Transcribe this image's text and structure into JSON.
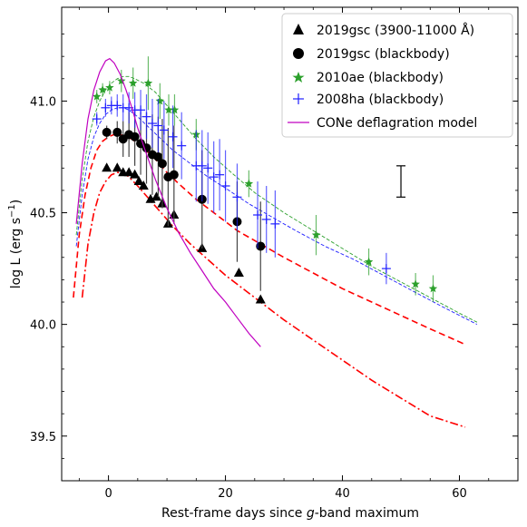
{
  "chart_data": {
    "type": "scatter",
    "title": "",
    "xlabel_main": "Rest-frame days since ",
    "xlabel_italic": "g",
    "xlabel_tail": "-band maximum",
    "ylabel_main": "log L (erg s",
    "ylabel_sup": "−1",
    "ylabel_tail": ")",
    "xlim": [
      -8,
      70
    ],
    "ylim": [
      39.3,
      41.42
    ],
    "xticks": [
      0,
      20,
      40,
      60
    ],
    "yticks": [
      39.5,
      40.0,
      40.5,
      41.0
    ],
    "ytick_labels": [
      "39.5",
      "40.0",
      "40.5",
      "41.0"
    ],
    "legend_position": "upper-right",
    "colors": {
      "black": "#000000",
      "green": "#2ca02c",
      "blue": "#1f1fff",
      "purple": "#c000c0",
      "red": "#ff0000",
      "scale_bar": "#000000"
    },
    "series": [
      {
        "name": "2019gsc (3900-11000 Å)",
        "marker": "triangle",
        "color": "#000000",
        "points": [
          [
            -0.3,
            40.7,
            0
          ],
          [
            1.5,
            40.7,
            0
          ],
          [
            2.5,
            40.68,
            0
          ],
          [
            3.5,
            40.68,
            0
          ],
          [
            4.5,
            40.67,
            0
          ],
          [
            5.2,
            40.64,
            0
          ],
          [
            6.0,
            40.62,
            0
          ],
          [
            7.2,
            40.56,
            0
          ],
          [
            8.2,
            40.57,
            0
          ],
          [
            9.2,
            40.54,
            0
          ],
          [
            10.2,
            40.45,
            0
          ],
          [
            11.2,
            40.49,
            0
          ],
          [
            16.0,
            40.34,
            0
          ],
          [
            22.3,
            40.23,
            0
          ],
          [
            26.0,
            40.11,
            0
          ]
        ]
      },
      {
        "name": "2019gsc (blackbody)",
        "marker": "circle",
        "color": "#000000",
        "points": [
          [
            -0.3,
            40.86,
            0.03
          ],
          [
            1.5,
            40.86,
            0.05
          ],
          [
            2.5,
            40.83,
            0.08
          ],
          [
            3.5,
            40.85,
            0.1
          ],
          [
            4.5,
            40.84,
            0.13
          ],
          [
            5.5,
            40.81,
            0.14
          ],
          [
            6.5,
            40.79,
            0.16
          ],
          [
            7.5,
            40.76,
            0.18
          ],
          [
            8.5,
            40.75,
            0.18
          ],
          [
            9.2,
            40.72,
            0.2
          ],
          [
            10.2,
            40.66,
            0.22
          ],
          [
            11.2,
            40.67,
            0.22
          ],
          [
            16.0,
            40.56,
            0.22
          ],
          [
            22.0,
            40.46,
            0.18
          ],
          [
            26.0,
            40.35,
            0.2
          ]
        ]
      },
      {
        "name": "2010ae (blackbody)",
        "marker": "star",
        "color": "#2ca02c",
        "points": [
          [
            -2.0,
            41.02,
            0.03
          ],
          [
            -1.0,
            41.05,
            0.03
          ],
          [
            0.2,
            41.06,
            0.03
          ],
          [
            2.2,
            41.09,
            0.05
          ],
          [
            4.2,
            41.08,
            0.07
          ],
          [
            6.8,
            41.08,
            0.12
          ],
          [
            8.8,
            41.0,
            0.08
          ],
          [
            10.3,
            40.96,
            0.07
          ],
          [
            11.3,
            40.96,
            0.07
          ],
          [
            15.0,
            40.85,
            0.07
          ],
          [
            24.0,
            40.63,
            0.06
          ],
          [
            35.5,
            40.4,
            0.09
          ],
          [
            44.5,
            40.28,
            0.06
          ],
          [
            52.5,
            40.18,
            0.05
          ],
          [
            55.5,
            40.16,
            0.06
          ]
        ]
      },
      {
        "name": "2008ha (blackbody)",
        "marker": "plus",
        "color": "#1f1fff",
        "points": [
          [
            -2.0,
            40.92,
            0.03
          ],
          [
            -0.5,
            40.97,
            0.04
          ],
          [
            0.5,
            40.98,
            0.04
          ],
          [
            1.5,
            40.98,
            0.05
          ],
          [
            2.5,
            40.97,
            0.06
          ],
          [
            3.5,
            40.97,
            0.07
          ],
          [
            4.5,
            40.96,
            0.08
          ],
          [
            5.5,
            40.96,
            0.09
          ],
          [
            6.5,
            40.93,
            0.1
          ],
          [
            7.5,
            40.9,
            0.11
          ],
          [
            8.5,
            40.89,
            0.12
          ],
          [
            9.5,
            40.87,
            0.13
          ],
          [
            11.0,
            40.84,
            0.14
          ],
          [
            12.5,
            40.8,
            0.15
          ],
          [
            15.0,
            40.71,
            0.16
          ],
          [
            16.0,
            40.71,
            0.16
          ],
          [
            17.0,
            40.7,
            0.16
          ],
          [
            18.0,
            40.66,
            0.16
          ],
          [
            19.0,
            40.67,
            0.16
          ],
          [
            20.0,
            40.62,
            0.16
          ],
          [
            22.0,
            40.57,
            0.15
          ],
          [
            25.5,
            40.49,
            0.15
          ],
          [
            27.0,
            40.47,
            0.15
          ],
          [
            28.5,
            40.45,
            0.15
          ],
          [
            47.5,
            40.25,
            0.07
          ]
        ]
      },
      {
        "name": "CONe deflagration model",
        "marker": "line",
        "color": "#c000c0",
        "points": [
          [
            -5.5,
            40.45,
            0
          ],
          [
            -4.5,
            40.72,
            0
          ],
          [
            -3.5,
            40.92,
            0
          ],
          [
            -2.5,
            41.05,
            0
          ],
          [
            -1.5,
            41.13,
            0
          ],
          [
            -0.5,
            41.18,
            0
          ],
          [
            0.2,
            41.19,
            0
          ],
          [
            1.0,
            41.17,
            0
          ],
          [
            2.0,
            41.12,
            0
          ],
          [
            3.0,
            41.05,
            0
          ],
          [
            4.0,
            40.97,
            0
          ],
          [
            5.0,
            40.88,
            0
          ],
          [
            6.0,
            40.8,
            0
          ],
          [
            8.0,
            40.65,
            0
          ],
          [
            10.0,
            40.52,
            0
          ],
          [
            12.0,
            40.41,
            0
          ],
          [
            14.0,
            40.32,
            0
          ],
          [
            16.0,
            40.24,
            0
          ],
          [
            18.0,
            40.16,
            0
          ],
          [
            20.0,
            40.1,
            0
          ],
          [
            22.0,
            40.03,
            0
          ],
          [
            24.0,
            39.96,
            0
          ],
          [
            26.0,
            39.9,
            0
          ]
        ]
      }
    ],
    "model_curves": [
      {
        "style": "dashed",
        "color": "#2ca02c",
        "points": [
          [
            -5.5,
            40.4
          ],
          [
            -4.5,
            40.65
          ],
          [
            -3.5,
            40.82
          ],
          [
            -2.5,
            40.93
          ],
          [
            -1.5,
            41.0
          ],
          [
            -0.5,
            41.05
          ],
          [
            0.5,
            41.08
          ],
          [
            1.5,
            41.1
          ],
          [
            2.5,
            41.11
          ],
          [
            3.5,
            41.11
          ],
          [
            4.5,
            41.1
          ],
          [
            6.0,
            41.08
          ],
          [
            8.0,
            41.04
          ],
          [
            10.0,
            40.98
          ],
          [
            12.0,
            40.92
          ],
          [
            15.0,
            40.83
          ],
          [
            18.0,
            40.75
          ],
          [
            21.0,
            40.68
          ],
          [
            25.0,
            40.59
          ],
          [
            30.0,
            40.5
          ],
          [
            35.0,
            40.42
          ],
          [
            40.0,
            40.34
          ],
          [
            45.0,
            40.26
          ],
          [
            50.0,
            40.19
          ],
          [
            55.0,
            40.12
          ],
          [
            60.0,
            40.05
          ],
          [
            63.0,
            40.01
          ]
        ]
      },
      {
        "style": "dashed",
        "color": "#1f1fff",
        "points": [
          [
            -5.5,
            40.35
          ],
          [
            -4.5,
            40.58
          ],
          [
            -3.5,
            40.74
          ],
          [
            -2.5,
            40.84
          ],
          [
            -1.5,
            40.9
          ],
          [
            -0.5,
            40.94
          ],
          [
            0.5,
            40.96
          ],
          [
            1.5,
            40.97
          ],
          [
            2.5,
            40.97
          ],
          [
            3.5,
            40.96
          ],
          [
            5.0,
            40.93
          ],
          [
            7.0,
            40.88
          ],
          [
            9.0,
            40.83
          ],
          [
            11.0,
            40.78
          ],
          [
            14.0,
            40.72
          ],
          [
            17.0,
            40.66
          ],
          [
            20.0,
            40.61
          ],
          [
            24.0,
            40.54
          ],
          [
            28.0,
            40.48
          ],
          [
            32.0,
            40.42
          ],
          [
            37.0,
            40.35
          ],
          [
            42.0,
            40.29
          ],
          [
            47.0,
            40.22
          ],
          [
            52.0,
            40.15
          ],
          [
            57.0,
            40.08
          ],
          [
            63.0,
            40.0
          ]
        ]
      },
      {
        "style": "dashed-thick",
        "color": "#ff0000",
        "points": [
          [
            -6.0,
            40.12
          ],
          [
            -5.0,
            40.4
          ],
          [
            -4.0,
            40.58
          ],
          [
            -3.0,
            40.7
          ],
          [
            -2.0,
            40.78
          ],
          [
            -1.0,
            40.82
          ],
          [
            0.0,
            40.84
          ],
          [
            1.0,
            40.85
          ],
          [
            2.0,
            40.85
          ],
          [
            3.0,
            40.84
          ],
          [
            4.0,
            40.83
          ],
          [
            5.0,
            40.81
          ],
          [
            6.0,
            40.79
          ],
          [
            8.0,
            40.74
          ],
          [
            10.0,
            40.68
          ],
          [
            12.0,
            40.63
          ],
          [
            15.0,
            40.56
          ],
          [
            18.0,
            40.5
          ],
          [
            22.0,
            40.42
          ],
          [
            26.0,
            40.36
          ],
          [
            30.0,
            40.3
          ],
          [
            35.0,
            40.23
          ],
          [
            40.0,
            40.16
          ],
          [
            45.0,
            40.1
          ],
          [
            50.0,
            40.04
          ],
          [
            55.0,
            39.98
          ],
          [
            61.0,
            39.91
          ]
        ]
      },
      {
        "style": "dashdot",
        "color": "#ff0000",
        "points": [
          [
            -4.5,
            40.12
          ],
          [
            -3.5,
            40.36
          ],
          [
            -2.5,
            40.5
          ],
          [
            -1.5,
            40.59
          ],
          [
            -0.5,
            40.64
          ],
          [
            0.5,
            40.67
          ],
          [
            1.5,
            40.68
          ],
          [
            2.5,
            40.68
          ],
          [
            3.5,
            40.66
          ],
          [
            5.0,
            40.62
          ],
          [
            7.0,
            40.56
          ],
          [
            9.0,
            40.5
          ],
          [
            11.0,
            40.44
          ],
          [
            14.0,
            40.36
          ],
          [
            17.0,
            40.29
          ],
          [
            20.0,
            40.22
          ],
          [
            25.0,
            40.12
          ],
          [
            30.0,
            40.02
          ],
          [
            35.0,
            39.93
          ],
          [
            40.0,
            39.84
          ],
          [
            45.0,
            39.75
          ],
          [
            50.0,
            39.67
          ],
          [
            55.0,
            39.59
          ],
          [
            61.0,
            39.54
          ]
        ]
      }
    ],
    "scale_bar": {
      "x": 50.0,
      "y_center": 40.64,
      "half_length": 0.07
    }
  }
}
